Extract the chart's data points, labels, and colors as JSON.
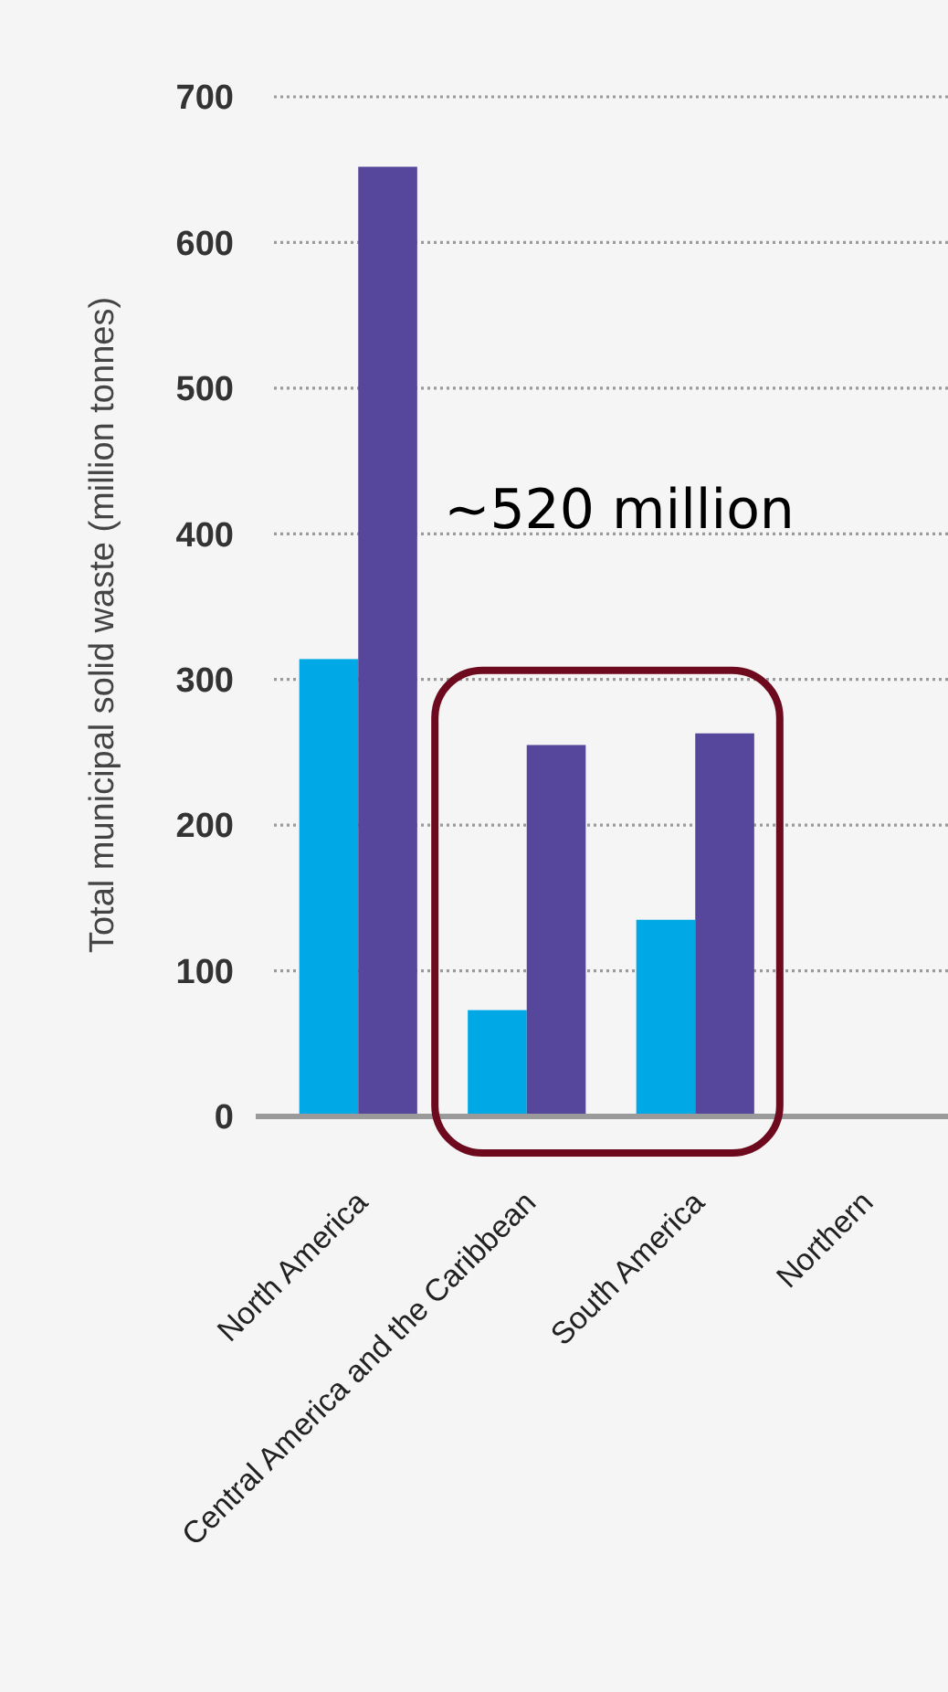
{
  "chart_data": {
    "type": "bar",
    "ylabel": "Total municipal solid waste (million tonnes)",
    "categories": [
      "North America",
      "Central America and the Caribbean",
      "South America",
      "Northern"
    ],
    "series": [
      {
        "color": "#00a8e6",
        "values": [
          314,
          73,
          135,
          null
        ]
      },
      {
        "color": "#56469c",
        "values": [
          652,
          255,
          263,
          null
        ]
      }
    ],
    "ylim": [
      0,
      700
    ],
    "yticks": [
      0,
      100,
      200,
      300,
      400,
      500,
      600,
      700
    ],
    "grid": "y",
    "annotations": [
      "~520 million"
    ]
  }
}
